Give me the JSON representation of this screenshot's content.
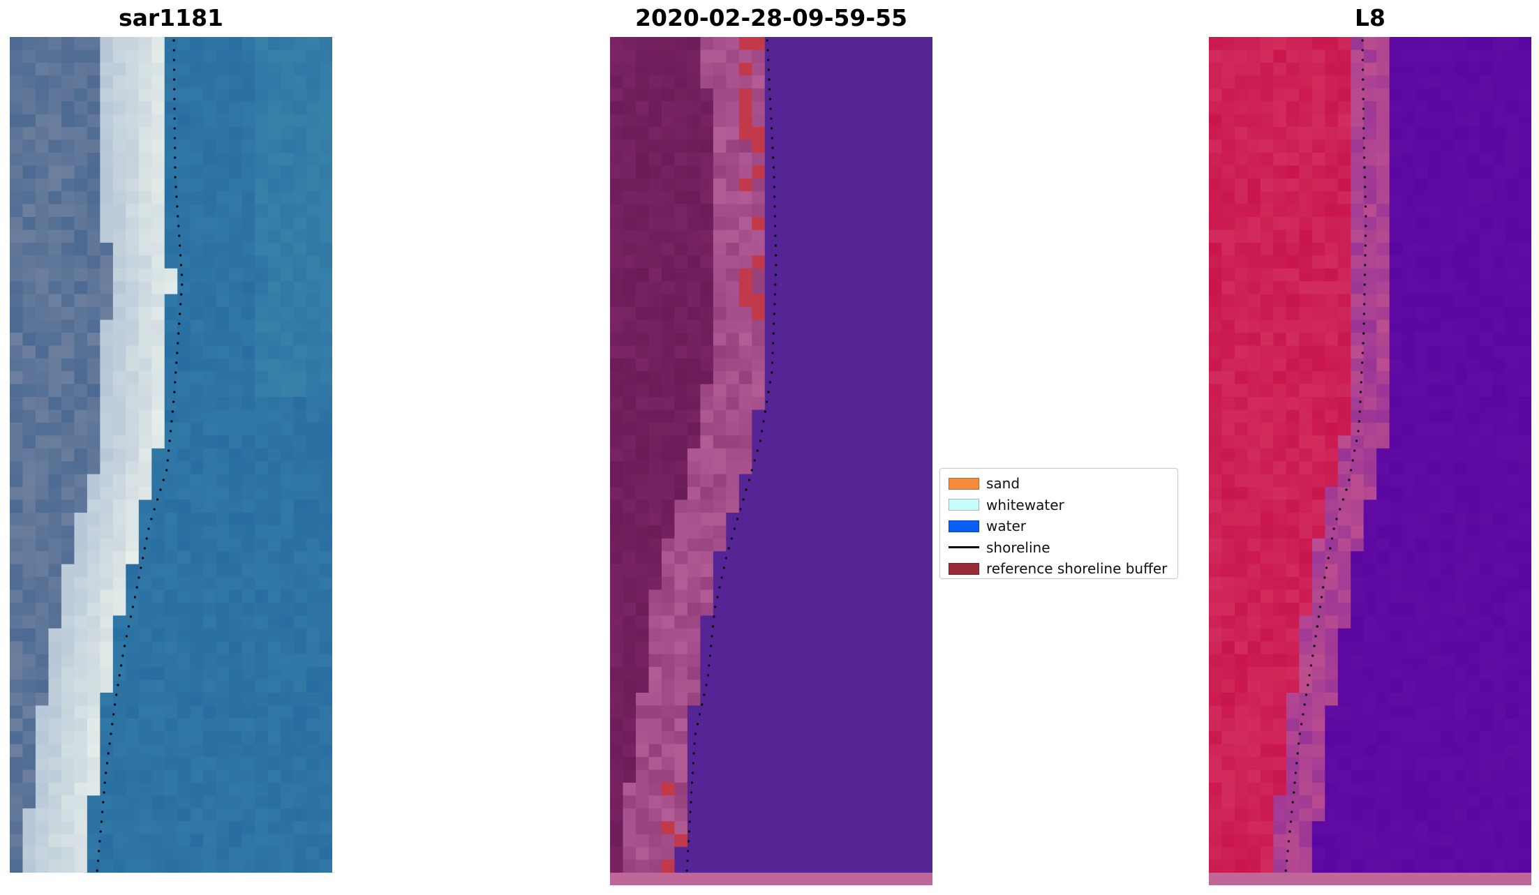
{
  "panels": [
    {
      "title": "sar1181",
      "kind": "rgb",
      "colors": {
        "land": "#4c6a92",
        "land_alt": "#6d7f9e",
        "sand": "#e8f0ea",
        "sand_alt": "#b9c8d8",
        "water": "#2468a0",
        "water_alt": "#3a86aa"
      }
    },
    {
      "title": "2020-02-28-09-59-55",
      "kind": "classified",
      "colors": {
        "land": "#7a2463",
        "land_alt": "#6b1c57",
        "sand": "#b35c96",
        "buffer": "#c23a4a",
        "water": "#552595",
        "bottom_strip": "#c0679a"
      }
    },
    {
      "title": "L8",
      "kind": "mndwi",
      "colors": {
        "land": "#c9174e",
        "land_alt": "#d22c5d",
        "sand": "#bd4e8e",
        "water": "#5a06a0",
        "water_alt": "#6410a6",
        "bottom_strip": "#c0679a"
      }
    }
  ],
  "legend": {
    "items": [
      {
        "label": "sand",
        "type": "patch",
        "color": "#f68b3c"
      },
      {
        "label": "whitewater",
        "type": "patch",
        "color": "#c8fdfb"
      },
      {
        "label": "water",
        "type": "patch",
        "color": "#0a5ef5"
      },
      {
        "label": "shoreline",
        "type": "line",
        "color": "#000000"
      },
      {
        "label": "reference shoreline buffer",
        "type": "patch",
        "color": "#9c2b38"
      }
    ]
  }
}
